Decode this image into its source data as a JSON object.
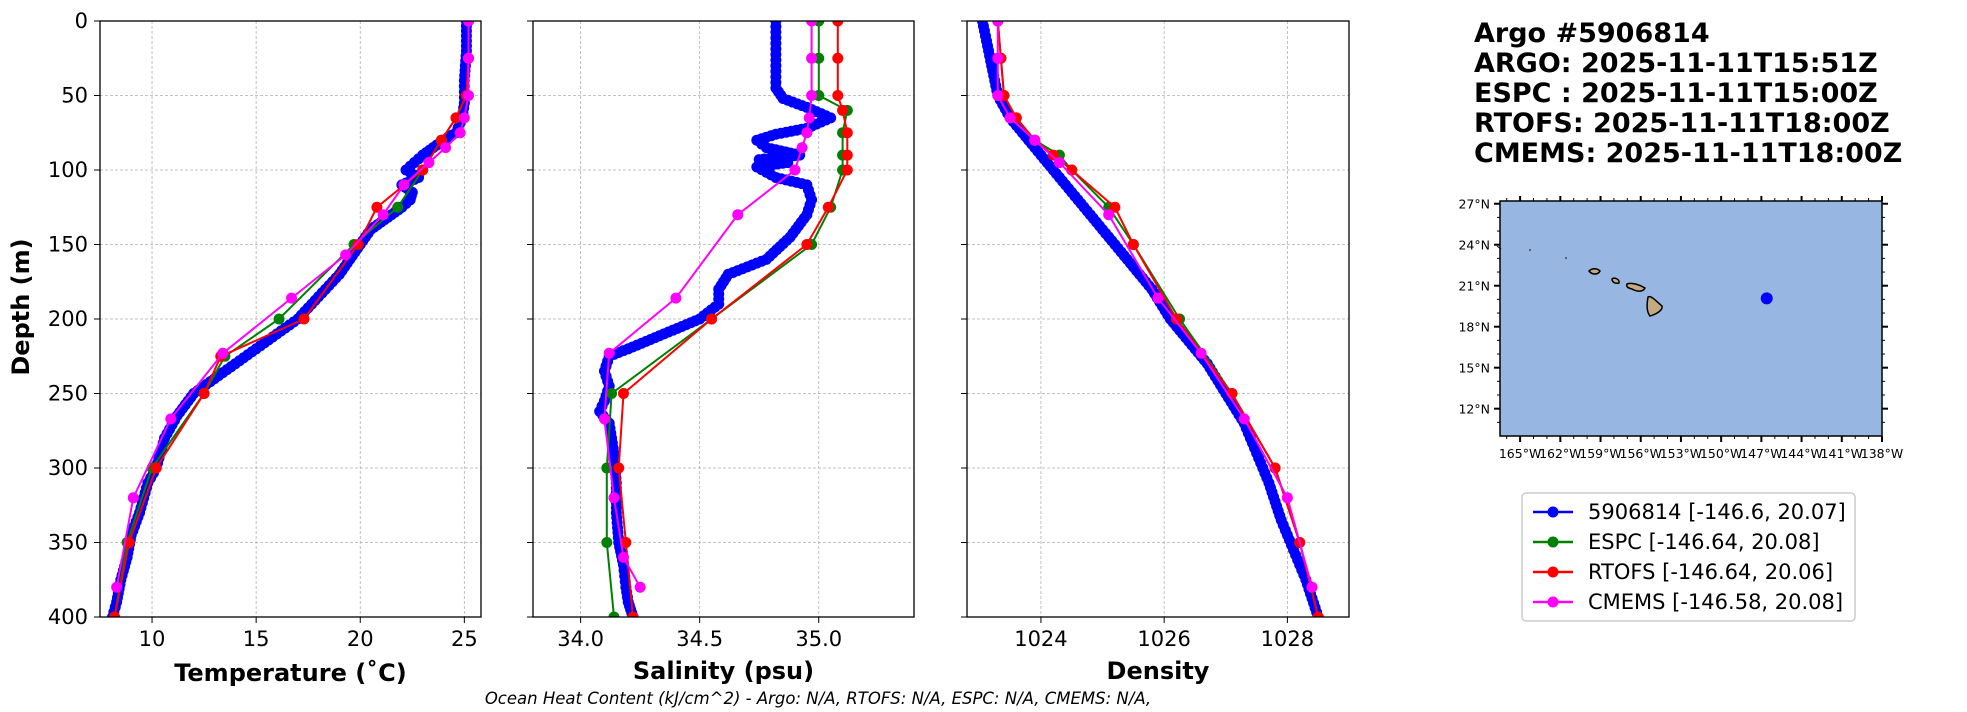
{
  "title_lines": [
    "Argo #5906814",
    "ARGO: 2025-11-11T15:51Z",
    "ESPC : 2025-11-11T15:00Z",
    "RTOFS: 2025-11-11T18:00Z",
    "CMEMS: 2025-11-11T18:00Z"
  ],
  "footnote": "Ocean Heat Content (kJ/cm^2) - Argo: N/A,  RTOFS: N/A,  ESPC: N/A,  CMEMS: N/A,",
  "colors": {
    "argo": "#0000ff",
    "espc": "#008000",
    "rtofs": "#ff0000",
    "cmems": "#ff00ff",
    "ocean": "#97b6e1",
    "land": "#c4a983"
  },
  "legend": [
    {
      "key": "argo",
      "label": "5906814 [-146.6, 20.07]"
    },
    {
      "key": "espc",
      "label": "ESPC [-146.64, 20.08]"
    },
    {
      "key": "rtofs",
      "label": "RTOFS [-146.64, 20.06]"
    },
    {
      "key": "cmems",
      "label": "CMEMS [-146.58, 20.08]"
    }
  ],
  "chart_data": [
    {
      "type": "line",
      "id": "temperature",
      "xlabel": "Temperature (˚C)",
      "ylabel": "Depth (m)",
      "xlim": [
        7.5,
        25.8
      ],
      "ylim": [
        400,
        0
      ],
      "xticks": [
        10,
        15,
        20,
        25
      ],
      "xtick_labels": [
        "10",
        "15",
        "20",
        "25"
      ],
      "yticks": [
        0,
        50,
        100,
        150,
        200,
        250,
        300,
        350,
        400
      ],
      "ytick_labels": [
        "0",
        "50",
        "100",
        "150",
        "200",
        "250",
        "300",
        "350",
        "400"
      ],
      "grid": true,
      "series": [
        {
          "name": "5906814",
          "color_key": "argo",
          "dense": true,
          "x": [
            25.1,
            25.1,
            25.0,
            25.0,
            24.9,
            24.6,
            24.0,
            23.5,
            23.0,
            22.2,
            22.8,
            22.0,
            22.5,
            22.4,
            22.0,
            21.5,
            21.0,
            20.5,
            20.0,
            19.5,
            19.0,
            18.0,
            17.0,
            16.0,
            15.0,
            14.0,
            13.0,
            12.0,
            11.2,
            10.6,
            10.2,
            9.8,
            9.4,
            9.0,
            8.8,
            8.5,
            8.3,
            8.1
          ],
          "y": [
            0,
            20,
            40,
            55,
            65,
            75,
            80,
            85,
            90,
            100,
            105,
            110,
            115,
            120,
            125,
            130,
            135,
            140,
            150,
            160,
            170,
            185,
            200,
            210,
            220,
            230,
            240,
            250,
            265,
            280,
            300,
            310,
            330,
            345,
            360,
            375,
            390,
            400
          ]
        },
        {
          "name": "ESPC",
          "color_key": "espc",
          "x": [
            25.2,
            25.2,
            25.1,
            24.6,
            23.9,
            23.0,
            21.8,
            19.7,
            16.1,
            13.5,
            12.5,
            10.0,
            8.8,
            8.2
          ],
          "y": [
            0,
            25,
            50,
            65,
            80,
            100,
            125,
            150,
            200,
            225,
            250,
            300,
            350,
            400
          ]
        },
        {
          "name": "RTOFS",
          "color_key": "rtofs",
          "x": [
            25.2,
            25.2,
            25.1,
            24.6,
            23.9,
            23.0,
            20.8,
            19.9,
            17.3,
            13.3,
            12.5,
            10.2,
            8.9,
            8.2
          ],
          "y": [
            0,
            25,
            50,
            65,
            80,
            100,
            125,
            150,
            200,
            225,
            250,
            300,
            350,
            400
          ]
        },
        {
          "name": "CMEMS",
          "color_key": "cmems",
          "x": [
            25.2,
            25.2,
            25.2,
            25.0,
            24.8,
            24.1,
            23.3,
            22.1,
            21.1,
            19.3,
            16.7,
            13.4,
            10.9,
            9.1,
            8.3
          ],
          "y": [
            0,
            25,
            50,
            65,
            75,
            85,
            95,
            110,
            130,
            157,
            186,
            223,
            267,
            320,
            380
          ]
        }
      ]
    },
    {
      "type": "line",
      "id": "salinity",
      "xlabel": "Salinity (psu)",
      "xlim": [
        33.8,
        35.4
      ],
      "ylim": [
        400,
        0
      ],
      "xticks": [
        34.0,
        34.5,
        35.0
      ],
      "xtick_labels": [
        "34.0",
        "34.5",
        "35.0"
      ],
      "grid": true,
      "series": [
        {
          "name": "5906814",
          "color_key": "argo",
          "dense": true,
          "x": [
            34.82,
            34.82,
            34.82,
            34.82,
            34.85,
            34.95,
            35.05,
            34.95,
            34.82,
            34.74,
            34.78,
            34.92,
            34.75,
            34.87,
            34.74,
            34.82,
            34.95,
            34.97,
            34.95,
            34.88,
            34.78,
            34.62,
            34.58,
            34.58,
            34.5,
            34.35,
            34.2,
            34.12,
            34.1,
            34.12,
            34.1,
            34.08,
            34.12,
            34.14,
            34.15,
            34.15,
            34.16,
            34.18,
            34.19,
            34.2,
            34.21,
            34.22
          ],
          "y": [
            0,
            15,
            30,
            45,
            52,
            58,
            65,
            72,
            76,
            80,
            85,
            90,
            93,
            95,
            98,
            105,
            110,
            120,
            130,
            145,
            160,
            170,
            180,
            190,
            200,
            210,
            220,
            225,
            235,
            245,
            255,
            262,
            270,
            290,
            310,
            330,
            350,
            365,
            380,
            390,
            395,
            400
          ]
        },
        {
          "name": "ESPC",
          "color_key": "espc",
          "x": [
            35.0,
            35.0,
            35.0,
            35.12,
            35.1,
            35.1,
            35.1,
            35.05,
            34.97,
            34.55,
            34.13,
            34.11,
            34.11,
            34.14
          ],
          "y": [
            0,
            25,
            50,
            60,
            75,
            90,
            100,
            125,
            150,
            200,
            250,
            300,
            350,
            400
          ]
        },
        {
          "name": "RTOFS",
          "color_key": "rtofs",
          "x": [
            35.08,
            35.08,
            35.08,
            35.1,
            35.12,
            35.12,
            35.12,
            35.04,
            34.95,
            34.55,
            34.18,
            34.16,
            34.19,
            34.22
          ],
          "y": [
            0,
            25,
            50,
            60,
            75,
            90,
            100,
            125,
            150,
            200,
            250,
            300,
            350,
            400
          ]
        },
        {
          "name": "CMEMS",
          "color_key": "cmems",
          "x": [
            34.97,
            34.97,
            34.97,
            34.96,
            34.95,
            34.93,
            34.9,
            34.66,
            34.4,
            34.12,
            34.1,
            34.14,
            34.18,
            34.25
          ],
          "y": [
            0,
            25,
            50,
            65,
            75,
            85,
            100,
            130,
            186,
            223,
            267,
            320,
            360,
            380
          ]
        }
      ]
    },
    {
      "type": "line",
      "id": "density",
      "xlabel": "Density",
      "xlim": [
        1022.8,
        1029.0
      ],
      "ylim": [
        400,
        0
      ],
      "xticks": [
        1024,
        1026,
        1028
      ],
      "xtick_labels": [
        "1024",
        "1026",
        "1028"
      ],
      "grid": true,
      "series": [
        {
          "name": "5906814",
          "color_key": "argo",
          "dense": true,
          "x": [
            1023.05,
            1023.1,
            1023.2,
            1023.3,
            1023.5,
            1023.8,
            1024.1,
            1024.4,
            1024.7,
            1025.0,
            1025.4,
            1025.8,
            1026.1,
            1026.4,
            1026.7,
            1027.0,
            1027.3,
            1027.5,
            1027.7,
            1027.9,
            1028.1,
            1028.3,
            1028.5
          ],
          "y": [
            0,
            10,
            30,
            50,
            65,
            80,
            95,
            110,
            125,
            140,
            160,
            180,
            200,
            215,
            230,
            250,
            270,
            290,
            310,
            335,
            355,
            375,
            400
          ]
        },
        {
          "name": "ESPC",
          "color_key": "espc",
          "x": [
            1023.3,
            1023.35,
            1023.4,
            1023.6,
            1023.9,
            1024.3,
            1024.5,
            1025.1,
            1025.5,
            1026.25,
            1027.1,
            1027.8,
            1028.2,
            1028.5
          ],
          "y": [
            0,
            25,
            50,
            65,
            80,
            90,
            100,
            125,
            150,
            200,
            250,
            300,
            350,
            400
          ]
        },
        {
          "name": "RTOFS",
          "color_key": "rtofs",
          "x": [
            1023.3,
            1023.35,
            1023.4,
            1023.6,
            1023.9,
            1024.2,
            1024.5,
            1025.2,
            1025.5,
            1026.2,
            1027.1,
            1027.8,
            1028.2,
            1028.5
          ],
          "y": [
            0,
            25,
            50,
            65,
            80,
            90,
            100,
            125,
            150,
            200,
            250,
            300,
            350,
            400
          ]
        },
        {
          "name": "CMEMS",
          "color_key": "cmems",
          "x": [
            1023.3,
            1023.3,
            1023.3,
            1023.5,
            1023.9,
            1024.3,
            1025.1,
            1025.9,
            1026.6,
            1027.3,
            1028.0,
            1028.4
          ],
          "y": [
            0,
            25,
            50,
            65,
            80,
            95,
            130,
            186,
            223,
            267,
            320,
            380
          ]
        }
      ]
    }
  ],
  "map": {
    "lon_range": [
      -166.5,
      -138
    ],
    "lat_range": [
      10,
      27.2
    ],
    "xticks": [
      -165,
      -162,
      -159,
      -156,
      -153,
      -150,
      -147,
      -144,
      -141,
      -138
    ],
    "xtick_labels": [
      "165°W",
      "162°W",
      "159°W",
      "156°W",
      "153°W",
      "150°W",
      "147°W",
      "144°W",
      "141°W",
      "138°W"
    ],
    "yticks": [
      12,
      15,
      18,
      21,
      24,
      27
    ],
    "ytick_labels": [
      "12°N",
      "15°N",
      "18°N",
      "21°N",
      "24°N",
      "27°N"
    ],
    "float_position": [
      -146.6,
      20.07
    ]
  }
}
